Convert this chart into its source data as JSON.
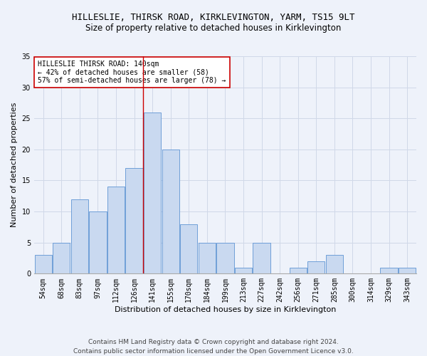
{
  "title1": "HILLESLIE, THIRSK ROAD, KIRKLEVINGTON, YARM, TS15 9LT",
  "title2": "Size of property relative to detached houses in Kirklevington",
  "xlabel": "Distribution of detached houses by size in Kirklevington",
  "ylabel": "Number of detached properties",
  "categories": [
    "54sqm",
    "68sqm",
    "83sqm",
    "97sqm",
    "112sqm",
    "126sqm",
    "141sqm",
    "155sqm",
    "170sqm",
    "184sqm",
    "199sqm",
    "213sqm",
    "227sqm",
    "242sqm",
    "256sqm",
    "271sqm",
    "285sqm",
    "300sqm",
    "314sqm",
    "329sqm",
    "343sqm"
  ],
  "values": [
    3,
    5,
    12,
    10,
    14,
    17,
    26,
    20,
    8,
    5,
    5,
    1,
    5,
    0,
    1,
    2,
    3,
    0,
    0,
    1,
    1
  ],
  "bar_color": "#c9d9f0",
  "bar_edge_color": "#6f9fd8",
  "highlight_index": 6,
  "highlight_line_color": "#cc0000",
  "annotation_text": "HILLESLIE THIRSK ROAD: 140sqm\n← 42% of detached houses are smaller (58)\n57% of semi-detached houses are larger (78) →",
  "annotation_box_color": "white",
  "annotation_box_edge_color": "#cc0000",
  "ylim": [
    0,
    35
  ],
  "yticks": [
    0,
    5,
    10,
    15,
    20,
    25,
    30,
    35
  ],
  "grid_color": "#d0d8e8",
  "background_color": "#eef2fa",
  "footer_text": "Contains HM Land Registry data © Crown copyright and database right 2024.\nContains public sector information licensed under the Open Government Licence v3.0.",
  "title1_fontsize": 9,
  "title2_fontsize": 8.5,
  "xlabel_fontsize": 8,
  "ylabel_fontsize": 8,
  "tick_fontsize": 7,
  "annotation_fontsize": 7,
  "footer_fontsize": 6.5
}
